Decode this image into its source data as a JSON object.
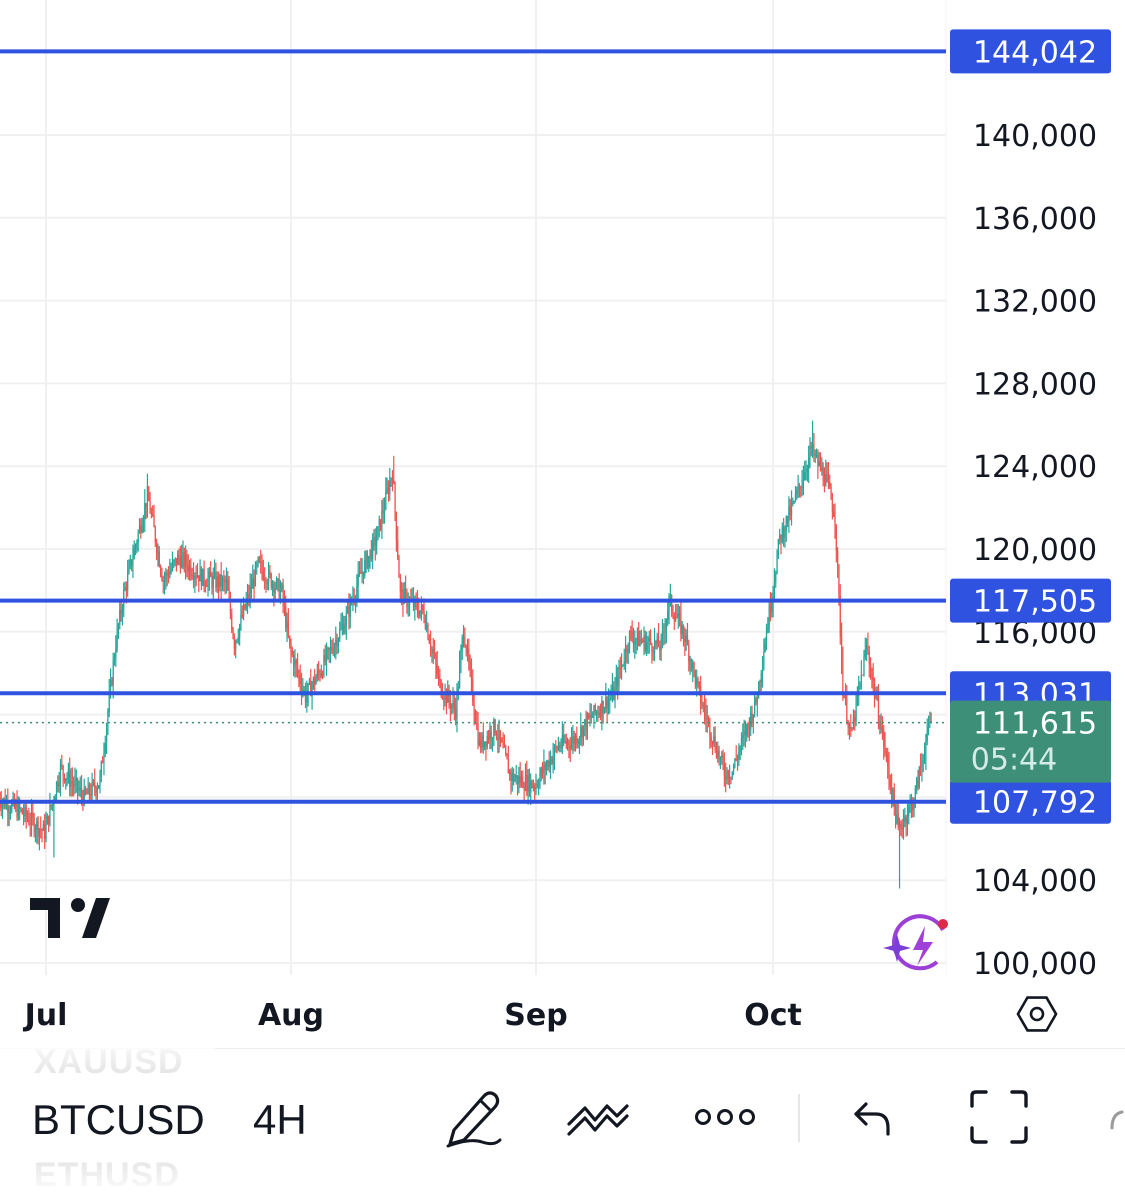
{
  "chart_data": {
    "type": "candlestick",
    "title": "",
    "ylim": [
      100000,
      146000
    ],
    "y_ticks": [
      "140,000",
      "136,000",
      "132,000",
      "128,000",
      "124,000",
      "120,000",
      "116,000",
      "104,000",
      "100,000"
    ],
    "y_tick_values": [
      140000,
      136000,
      132000,
      128000,
      124000,
      120000,
      116000,
      104000,
      100000
    ],
    "x_ticks": [
      "Jul",
      "Aug",
      "Sep",
      "Oct"
    ],
    "x_tick_dates": [
      "2025-07-01",
      "2025-08-01",
      "2025-09-01",
      "2025-10-01"
    ],
    "x_range": [
      "2025-06-25",
      "2025-10-23"
    ],
    "grid": true,
    "up_color": "#26a69a",
    "down_color": "#ef5350",
    "horizontal_levels": [
      {
        "label": "144,042",
        "value": 144042
      },
      {
        "label": "117,505",
        "value": 117505
      },
      {
        "label": "113,031",
        "value": 113031
      },
      {
        "label": "107,792",
        "value": 107792
      }
    ],
    "level_color": "#2f52e0",
    "last_price": {
      "label": "111,615",
      "value": 111615,
      "countdown": "05:44",
      "color": "#3d8f78"
    },
    "price_path": [
      [
        "2025-06-25",
        108000
      ],
      [
        "2025-06-28",
        107300
      ],
      [
        "2025-07-01",
        106300
      ],
      [
        "2025-07-03",
        109400
      ],
      [
        "2025-07-06",
        108000
      ],
      [
        "2025-07-08",
        108800
      ],
      [
        "2025-07-10",
        115500
      ],
      [
        "2025-07-11",
        117800
      ],
      [
        "2025-07-14",
        122600
      ],
      [
        "2025-07-16",
        118500
      ],
      [
        "2025-07-18",
        119600
      ],
      [
        "2025-07-21",
        118600
      ],
      [
        "2025-07-24",
        118300
      ],
      [
        "2025-07-25",
        115500
      ],
      [
        "2025-07-28",
        119200
      ],
      [
        "2025-07-31",
        117900
      ],
      [
        "2025-08-01",
        115200
      ],
      [
        "2025-08-03",
        112900
      ],
      [
        "2025-08-05",
        114200
      ],
      [
        "2025-08-08",
        116500
      ],
      [
        "2025-08-10",
        118800
      ],
      [
        "2025-08-12",
        120500
      ],
      [
        "2025-08-14",
        123800
      ],
      [
        "2025-08-15",
        117800
      ],
      [
        "2025-08-18",
        116900
      ],
      [
        "2025-08-20",
        113400
      ],
      [
        "2025-08-22",
        112200
      ],
      [
        "2025-08-23",
        116200
      ],
      [
        "2025-08-25",
        110500
      ],
      [
        "2025-08-27",
        111400
      ],
      [
        "2025-08-29",
        109000
      ],
      [
        "2025-09-01",
        108600
      ],
      [
        "2025-09-04",
        110500
      ],
      [
        "2025-09-06",
        110800
      ],
      [
        "2025-09-08",
        111800
      ],
      [
        "2025-09-11",
        113000
      ],
      [
        "2025-09-13",
        115800
      ],
      [
        "2025-09-15",
        115500
      ],
      [
        "2025-09-17",
        115300
      ],
      [
        "2025-09-18",
        117500
      ],
      [
        "2025-09-20",
        115800
      ],
      [
        "2025-09-22",
        112700
      ],
      [
        "2025-09-25",
        109200
      ],
      [
        "2025-09-26",
        109300
      ],
      [
        "2025-09-29",
        112600
      ],
      [
        "2025-10-01",
        117800
      ],
      [
        "2025-10-02",
        120500
      ],
      [
        "2025-10-04",
        122400
      ],
      [
        "2025-10-06",
        124800
      ],
      [
        "2025-10-08",
        123200
      ],
      [
        "2025-10-09",
        121600
      ],
      [
        "2025-10-10",
        113300
      ],
      [
        "2025-10-11",
        110900
      ],
      [
        "2025-10-13",
        115300
      ],
      [
        "2025-10-15",
        111000
      ],
      [
        "2025-10-17",
        106400
      ],
      [
        "2025-10-19",
        107900
      ],
      [
        "2025-10-21",
        111615
      ]
    ],
    "extremes": [
      {
        "date": "2025-07-14",
        "high": 123000
      },
      {
        "date": "2025-08-14",
        "high": 124500
      },
      {
        "date": "2025-10-06",
        "high": 126200
      },
      {
        "date": "2025-07-02",
        "low": 105100
      },
      {
        "date": "2025-10-17",
        "low": 103600
      }
    ]
  },
  "toolbar": {
    "symbol_prev": "XAUUSD",
    "symbol": "BTCUSD",
    "symbol_next": "ETHUSD",
    "interval": "4H"
  },
  "icons": {
    "logo": "tradingview-logo",
    "ai": "ai-spark-icon",
    "settings": "settings-hexagon-icon",
    "draw": "pencil-icon",
    "indicators": "indicators-icon",
    "more": "more-dots-icon",
    "undo": "undo-arrow-icon",
    "fullscreen": "fullscreen-icon"
  }
}
